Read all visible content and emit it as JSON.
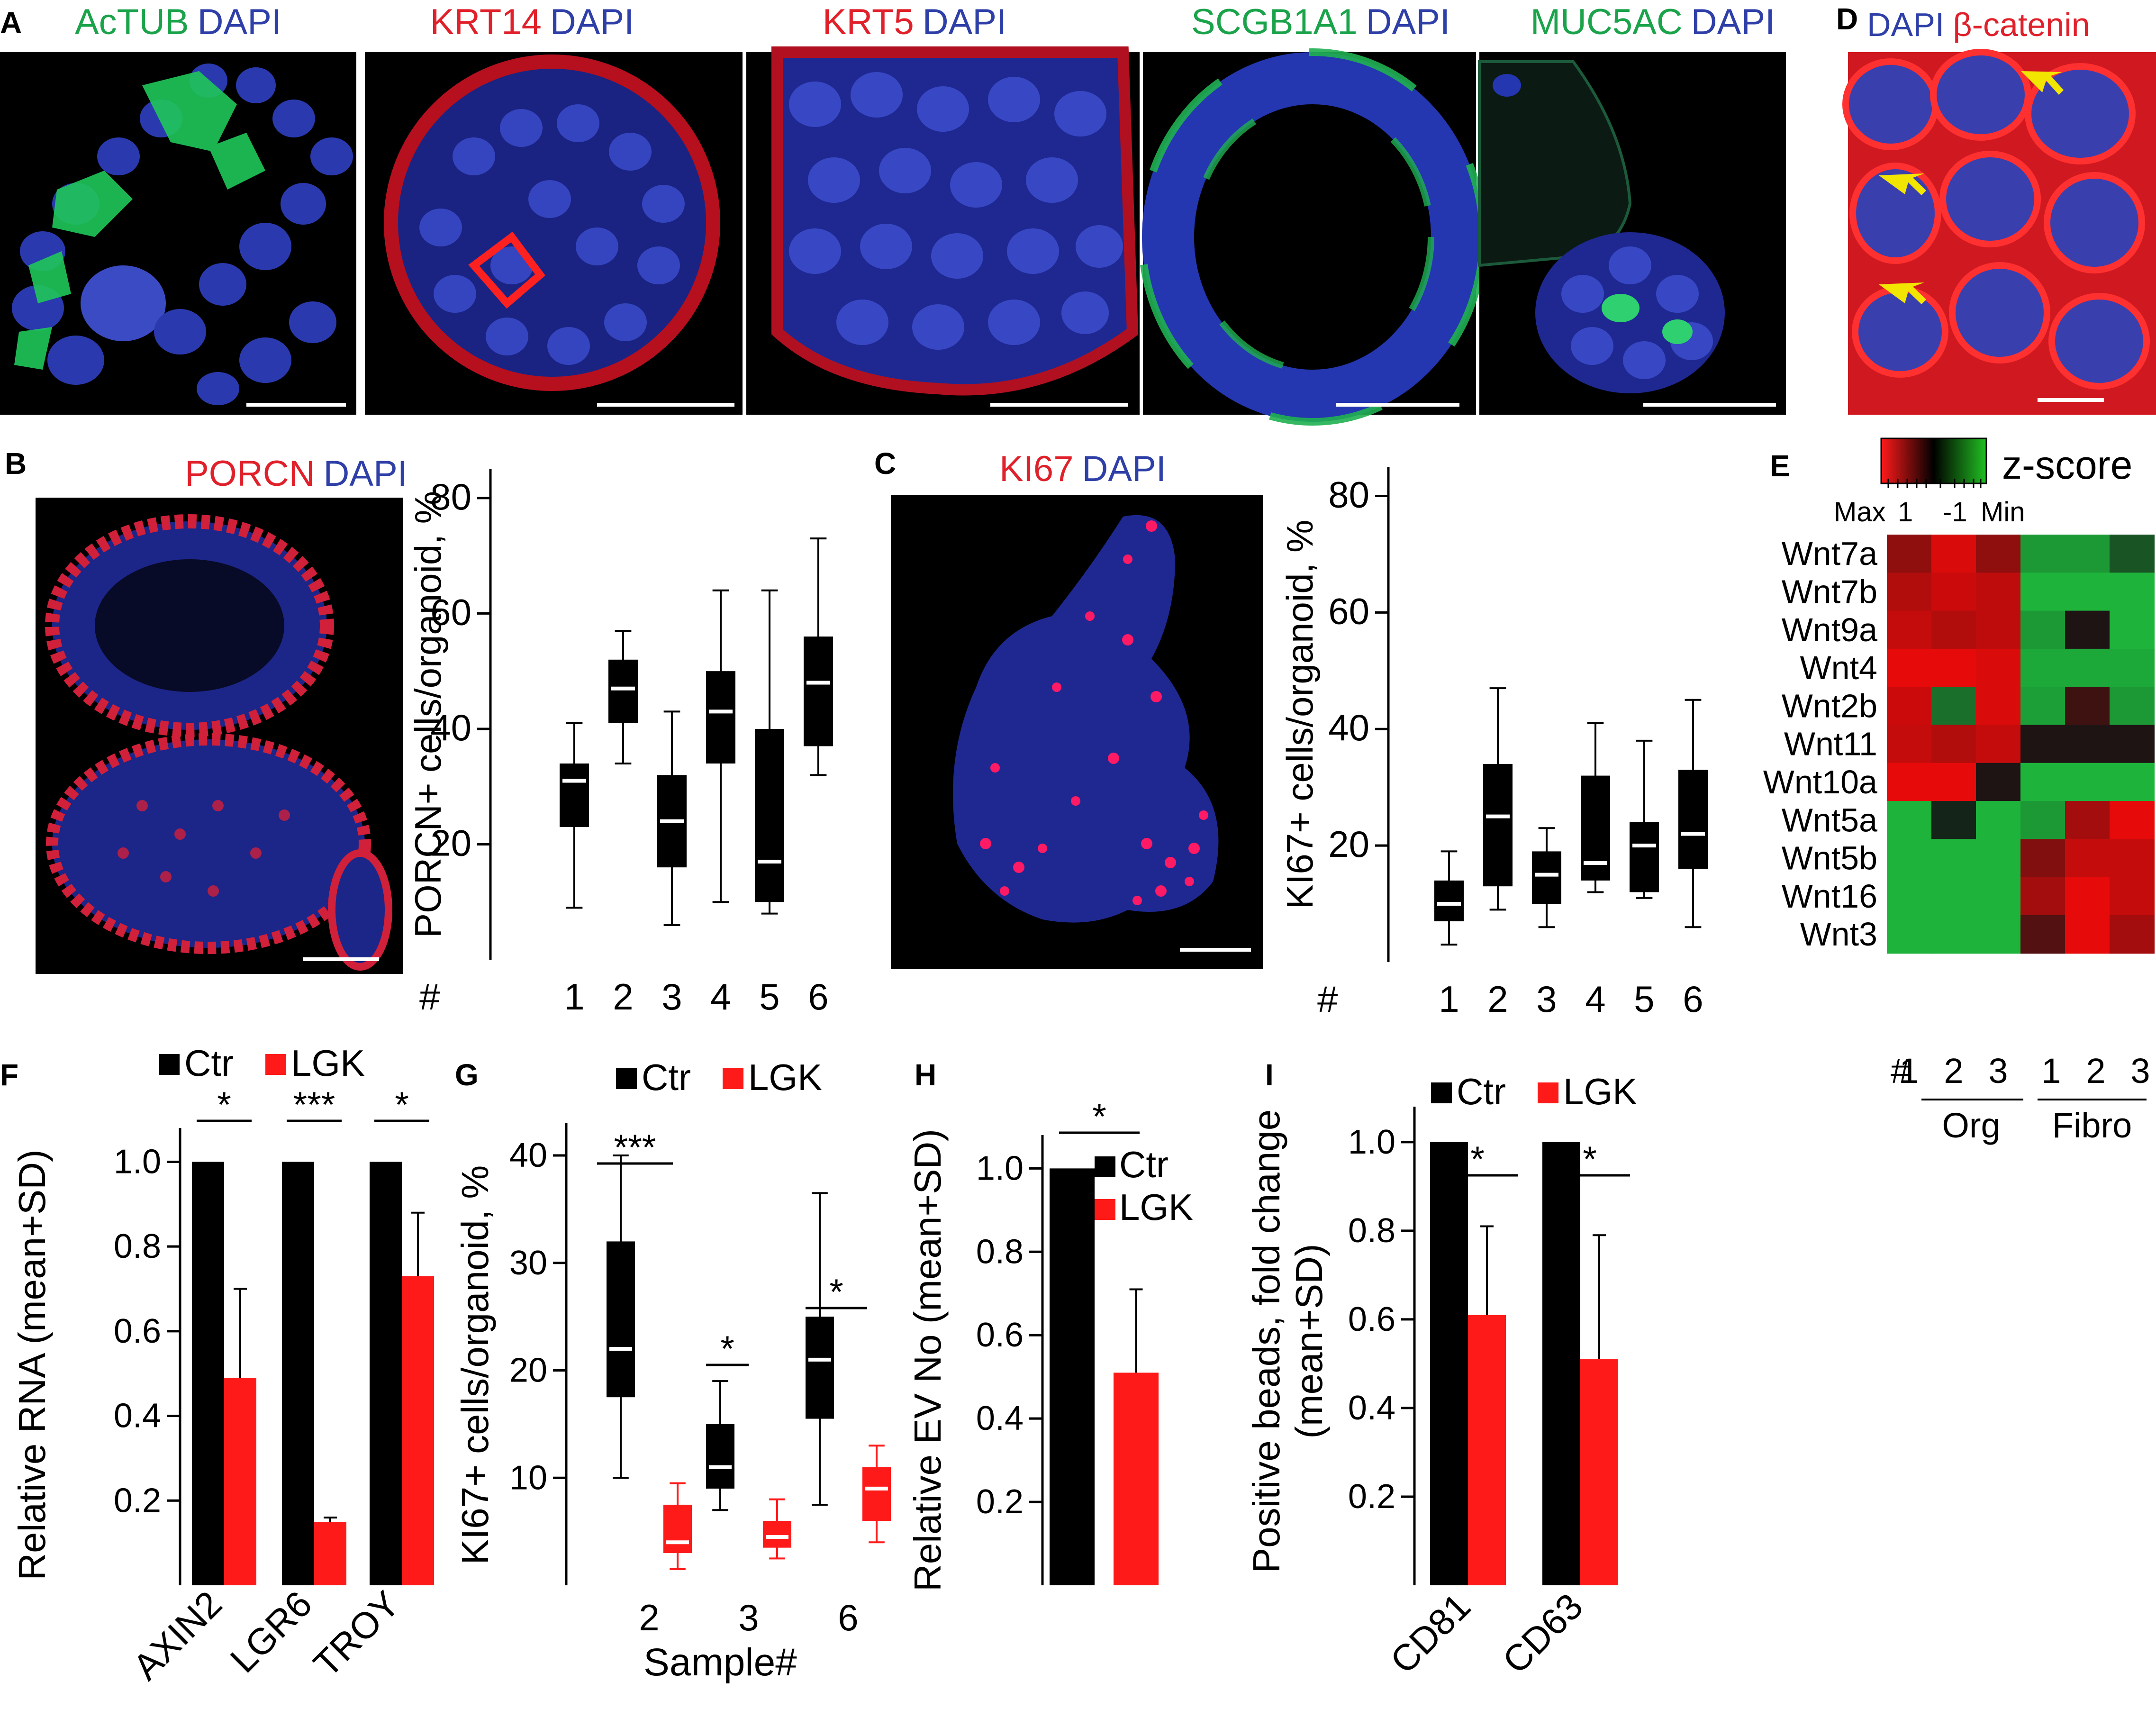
{
  "panel_letters": {
    "A": "A",
    "B": "B",
    "C": "C",
    "D": "D",
    "E": "E",
    "F": "F",
    "G": "G",
    "H": "H",
    "I": "I"
  },
  "micrographs": {
    "a1": {
      "marker": "AcTUB",
      "counter": "DAPI"
    },
    "a2": {
      "marker": "KRT14",
      "counter": "DAPI"
    },
    "a3": {
      "marker": "KRT5",
      "counter": "DAPI"
    },
    "a4": {
      "marker": "SCGB1A1",
      "counter": "DAPI"
    },
    "a5": {
      "marker": "MUC5AC",
      "counter": "DAPI"
    },
    "d": {
      "counter": "DAPI",
      "marker": "β-catenin"
    },
    "b": {
      "marker": "PORCN",
      "counter": "DAPI"
    },
    "c": {
      "marker": "KI67",
      "counter": "DAPI"
    }
  },
  "colors": {
    "green": "#1aa34a",
    "red": "#e0202a",
    "blue": "#2e3fa8",
    "bar_red": "#ff1a1a",
    "black": "#000000",
    "arrow": "#f2e600"
  },
  "chart_data": [
    {
      "id": "B",
      "type": "box",
      "ylabel": "PORCN+ cells/organoid, %",
      "ylim": [
        0,
        85
      ],
      "yticks": [
        20,
        40,
        60,
        80
      ],
      "x_prefix": "#",
      "categories": [
        "1",
        "2",
        "3",
        "4",
        "5",
        "6"
      ],
      "boxes": [
        {
          "min": 9,
          "q1": 23,
          "median": 31,
          "q3": 34,
          "max": 41
        },
        {
          "min": 34,
          "q1": 41,
          "median": 47,
          "q3": 52,
          "max": 57
        },
        {
          "min": 6,
          "q1": 16,
          "median": 24,
          "q3": 32,
          "max": 43
        },
        {
          "min": 10,
          "q1": 34,
          "median": 43,
          "q3": 50,
          "max": 64
        },
        {
          "min": 8,
          "q1": 10,
          "median": 17,
          "q3": 40,
          "max": 64
        },
        {
          "min": 32,
          "q1": 37,
          "median": 48,
          "q3": 56,
          "max": 73
        }
      ]
    },
    {
      "id": "C",
      "type": "box",
      "ylabel": "KI67+ cells/organoid, %",
      "ylim": [
        0,
        85
      ],
      "yticks": [
        20,
        40,
        60,
        80
      ],
      "x_prefix": "#",
      "categories": [
        "1",
        "2",
        "3",
        "4",
        "5",
        "6"
      ],
      "boxes": [
        {
          "min": 3,
          "q1": 7,
          "median": 10,
          "q3": 14,
          "max": 19
        },
        {
          "min": 9,
          "q1": 13,
          "median": 25,
          "q3": 34,
          "max": 47
        },
        {
          "min": 6,
          "q1": 10,
          "median": 15,
          "q3": 19,
          "max": 23
        },
        {
          "min": 12,
          "q1": 14,
          "median": 17,
          "q3": 32,
          "max": 41
        },
        {
          "min": 11,
          "q1": 12,
          "median": 20,
          "q3": 24,
          "max": 38
        },
        {
          "min": 6,
          "q1": 16,
          "median": 22,
          "q3": 33,
          "max": 45
        }
      ]
    },
    {
      "id": "E",
      "type": "heatmap",
      "legend": {
        "label": "z-score",
        "max": "Max",
        "one": "1",
        "minus_one": "-1",
        "min": "Min"
      },
      "rows": [
        "Wnt7a",
        "Wnt7b",
        "Wnt9a",
        "Wnt4",
        "Wnt2b",
        "Wnt11",
        "Wnt10a",
        "Wnt5a",
        "Wnt5b",
        "Wnt16",
        "Wnt3"
      ],
      "x_prefix": "#",
      "columns": [
        "1",
        "2",
        "3",
        "1",
        "2",
        "3"
      ],
      "groups": [
        {
          "label": "Org"
        },
        {
          "label": "Fibro"
        }
      ],
      "values": [
        [
          1.7,
          2.8,
          1.7,
          -2.5,
          -2.5,
          -1.2
        ],
        [
          2.2,
          2.6,
          2.4,
          -3,
          -3,
          -3
        ],
        [
          2.5,
          2.2,
          2.4,
          -2.5,
          0,
          -3
        ],
        [
          3,
          3,
          2.8,
          -2.8,
          -2.8,
          -2.8
        ],
        [
          2.6,
          -1.7,
          2.8,
          -2.6,
          0.5,
          -2.5
        ],
        [
          2.5,
          2.2,
          2.5,
          0,
          0,
          0
        ],
        [
          3,
          3,
          0,
          -3,
          -3,
          -3
        ],
        [
          -3,
          -0.3,
          -3,
          -2.5,
          2,
          3
        ],
        [
          -3,
          -3,
          -3,
          1.5,
          2.5,
          2.5
        ],
        [
          -3,
          -3,
          -3,
          2,
          3,
          2.5
        ],
        [
          -3,
          -3,
          -3,
          0.8,
          3,
          2
        ]
      ]
    },
    {
      "id": "F",
      "type": "bar",
      "ylabel": "Relative RNA (mean+SD)",
      "ylim": [
        0,
        1.08
      ],
      "yticks": [
        0.2,
        0.4,
        0.6,
        0.8,
        1.0
      ],
      "categories": [
        "AXIN2",
        "LGR6",
        "TROY"
      ],
      "series": [
        {
          "name": "Ctr",
          "values": [
            1.0,
            1.0,
            1.0
          ],
          "sd": [
            0,
            0,
            0
          ]
        },
        {
          "name": "LGK",
          "values": [
            0.49,
            0.15,
            0.73
          ],
          "sd": [
            0.21,
            0.01,
            0.15
          ]
        }
      ],
      "significance": [
        "*",
        "***",
        "*"
      ]
    },
    {
      "id": "G",
      "type": "box",
      "ylabel": "KI67+ cells/organoid, %",
      "xlabel": "Sample#",
      "ylim": [
        0,
        43
      ],
      "yticks": [
        10,
        20,
        30,
        40
      ],
      "categories": [
        "2",
        "3",
        "6"
      ],
      "series": [
        {
          "name": "Ctr",
          "boxes": [
            {
              "min": 10,
              "q1": 17.5,
              "median": 22,
              "q3": 32,
              "max": 40
            },
            {
              "min": 7,
              "q1": 9,
              "median": 11,
              "q3": 15,
              "max": 19
            },
            {
              "min": 7.5,
              "q1": 15.5,
              "median": 21,
              "q3": 25,
              "max": 36.5
            }
          ]
        },
        {
          "name": "LGK",
          "boxes": [
            {
              "min": 1.5,
              "q1": 3,
              "median": 4,
              "q3": 7.5,
              "max": 9.5
            },
            {
              "min": 2.5,
              "q1": 3.5,
              "median": 4.5,
              "q3": 6,
              "max": 8
            },
            {
              "min": 4,
              "q1": 6,
              "median": 9,
              "q3": 11,
              "max": 13
            }
          ]
        }
      ],
      "significance": [
        "***",
        "*",
        "*"
      ]
    },
    {
      "id": "H",
      "type": "bar",
      "ylabel": "Relative EV No (mean+SD)",
      "ylim": [
        0,
        1.08
      ],
      "yticks": [
        0.2,
        0.4,
        0.6,
        0.8,
        1.0
      ],
      "series": [
        {
          "name": "Ctr",
          "value": 1.0,
          "sd": 0
        },
        {
          "name": "LGK",
          "value": 0.51,
          "sd": 0.2
        }
      ],
      "significance": "*"
    },
    {
      "id": "I",
      "type": "bar",
      "ylabel_line1": "Positive beads, fold change",
      "ylabel_line2": "(mean+SD)",
      "ylim": [
        0,
        1.08
      ],
      "yticks": [
        0.2,
        0.4,
        0.6,
        0.8,
        1.0
      ],
      "categories": [
        "CD81",
        "CD63"
      ],
      "series": [
        {
          "name": "Ctr",
          "values": [
            1.0,
            1.0
          ],
          "sd": [
            0,
            0
          ]
        },
        {
          "name": "LGK",
          "values": [
            0.61,
            0.51
          ],
          "sd": [
            0.2,
            0.28
          ]
        }
      ],
      "significance": [
        "*",
        "*"
      ]
    }
  ]
}
